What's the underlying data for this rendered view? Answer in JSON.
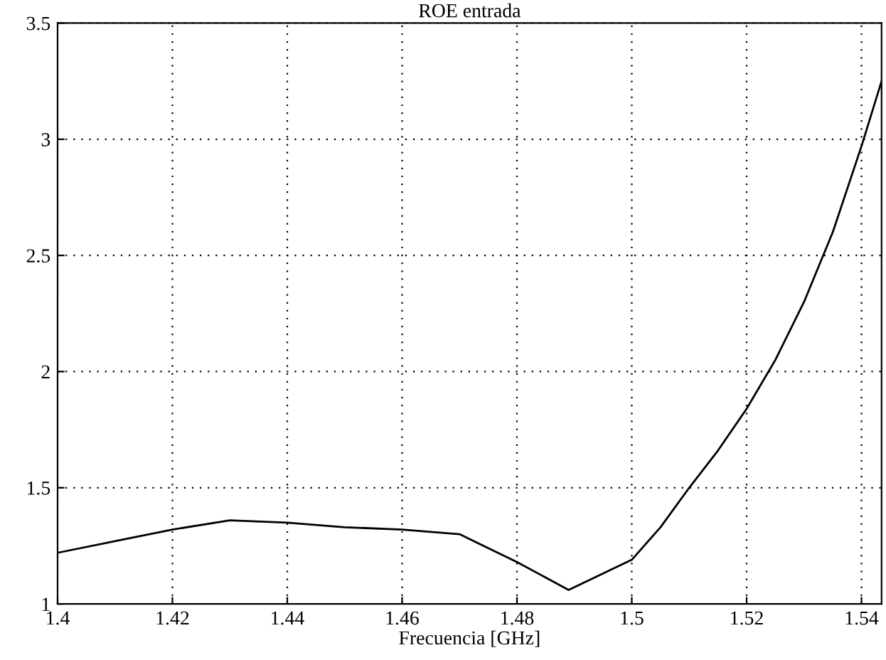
{
  "chart_data": {
    "type": "line",
    "title": "ROE entrada",
    "xlabel": "Frecuencia [GHz]",
    "x": [
      1.4,
      1.41,
      1.42,
      1.43,
      1.44,
      1.45,
      1.46,
      1.47,
      1.48,
      1.489,
      1.5,
      1.505,
      1.51,
      1.515,
      1.52,
      1.525,
      1.53,
      1.535,
      1.54,
      1.5435
    ],
    "series": [
      {
        "color": "#000000",
        "values": [
          1.22,
          1.27,
          1.32,
          1.36,
          1.35,
          1.33,
          1.32,
          1.3,
          1.18,
          1.06,
          1.19,
          1.33,
          1.5,
          1.66,
          1.84,
          2.05,
          2.3,
          2.6,
          2.97,
          3.25
        ]
      }
    ],
    "xlim": [
      1.4,
      1.5435
    ],
    "ylim": [
      1,
      3.5
    ],
    "xticks": [
      1.4,
      1.42,
      1.44,
      1.46,
      1.48,
      1.5,
      1.52,
      1.54
    ],
    "yticks": [
      1,
      1.5,
      2,
      2.5,
      3,
      3.5
    ],
    "grid": true,
    "line_style": "solid",
    "marker": "none"
  }
}
